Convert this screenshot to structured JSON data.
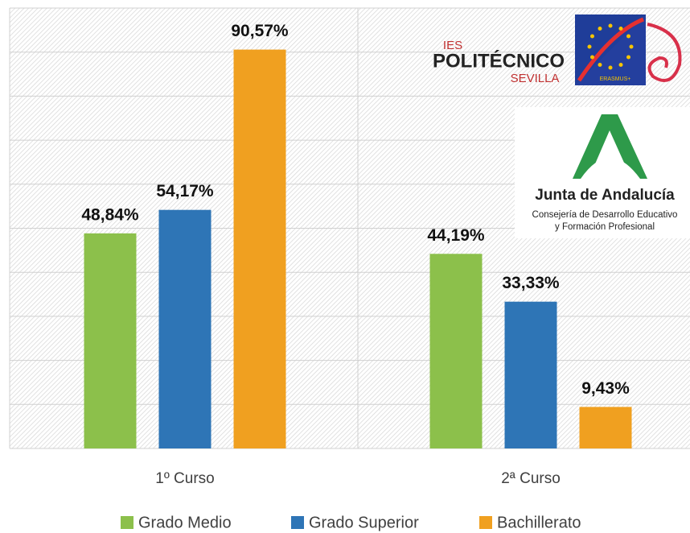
{
  "chart_data": {
    "type": "bar",
    "categories": [
      "1º Curso",
      "2ª Curso"
    ],
    "series": [
      {
        "name": "Grado Medio",
        "color": "#8cc04b",
        "values": [
          48.84,
          44.19
        ],
        "value_labels": [
          "48,84%",
          "44,19%"
        ]
      },
      {
        "name": "Grado Superior",
        "color": "#2e75b6",
        "values": [
          54.17,
          33.33
        ],
        "value_labels": [
          "54,17%",
          "33,33%"
        ]
      },
      {
        "name": "Bachillerato",
        "color": "#f0a020",
        "values": [
          90.57,
          9.43
        ],
        "value_labels": [
          "90,57%",
          "9,43%"
        ]
      }
    ],
    "ylim": [
      0,
      100
    ],
    "yticks": [
      0,
      10,
      20,
      30,
      40,
      50,
      60,
      70,
      80,
      90,
      100
    ],
    "grid": true,
    "legend": "bottom",
    "annotations": [
      "IES",
      "POLITÉCNICO",
      "SEVILLA",
      "ERASMUS+",
      "Junta de Andalucía",
      "Consejería de Desarrollo Educativo",
      "y Formación Profesional"
    ]
  }
}
